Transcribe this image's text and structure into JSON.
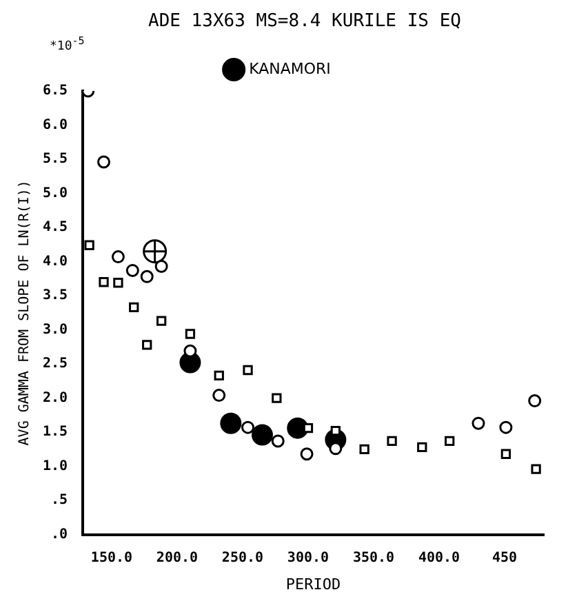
{
  "chart_data": {
    "type": "scatter",
    "title": "ADE 13X63 MS=8.4 KURILE IS EQ",
    "xlabel": "PERIOD",
    "ylabel": "AVG GAMMA FROM SLOPE OF LN(R(I))",
    "annotations": [
      "*10$^{-5}$"
    ],
    "xlim": [
      128,
      480
    ],
    "xticks": [
      {
        "value": 150,
        "label": "150.0"
      },
      {
        "value": 200,
        "label": "200.0"
      },
      {
        "value": 250,
        "label": "250.0"
      },
      {
        "value": 300,
        "label": "300.0"
      },
      {
        "value": 350,
        "label": "350.0"
      },
      {
        "value": 400,
        "label": "400.0"
      },
      {
        "value": 450,
        "label": "450"
      }
    ],
    "ylim": [
      0,
      6.5
    ],
    "yticks": [
      {
        "value": 0,
        "label": ".0"
      },
      {
        "value": 0.5,
        "label": ".5"
      },
      {
        "value": 1,
        "label": "1.0"
      },
      {
        "value": 1.5,
        "label": "1.5"
      },
      {
        "value": 2,
        "label": "2.0"
      },
      {
        "value": 2.5,
        "label": "2.5"
      },
      {
        "value": 3,
        "label": "3.0"
      },
      {
        "value": 3.5,
        "label": "3.5"
      },
      {
        "value": 4,
        "label": "4.0"
      },
      {
        "value": 4.5,
        "label": "4.5"
      },
      {
        "value": 5,
        "label": "5.0"
      },
      {
        "value": 5.5,
        "label": "5.5"
      },
      {
        "value": 6,
        "label": "6.0"
      },
      {
        "value": 6.5,
        "label": "6.5"
      }
    ],
    "grid": false,
    "legend": "top",
    "series": [
      {
        "color": "#000000",
        "marker": "circle",
        "x": [
          132,
          144,
          155,
          166,
          177,
          188,
          210,
          232,
          254,
          277,
          299,
          321,
          430,
          451,
          473
        ],
        "values": [
          6.5,
          5.46,
          4.07,
          3.87,
          3.78,
          3.93,
          2.69,
          2.04,
          1.57,
          1.37,
          1.18,
          1.26,
          1.63,
          1.57,
          1.96
        ]
      },
      {
        "color": "#000000",
        "marker": "square",
        "x": [
          133,
          144,
          155,
          167,
          177,
          188,
          210,
          232,
          254,
          276,
          300,
          321,
          343,
          364,
          387,
          408,
          451,
          474
        ],
        "values": [
          4.24,
          3.7,
          3.69,
          3.33,
          2.78,
          3.13,
          2.94,
          2.33,
          2.41,
          2.0,
          1.56,
          1.52,
          1.25,
          1.37,
          1.28,
          1.37,
          1.18,
          0.96
        ]
      },
      {
        "color": "#000000",
        "x": [
          183
        ],
        "values": [
          4.15
        ]
      },
      {
        "name": "KANAMORI",
        "color": "#000000",
        "marker": "circle",
        "x": [
          210,
          241,
          265,
          292,
          321
        ],
        "values": [
          2.52,
          1.63,
          1.46,
          1.56,
          1.39
        ]
      }
    ]
  }
}
